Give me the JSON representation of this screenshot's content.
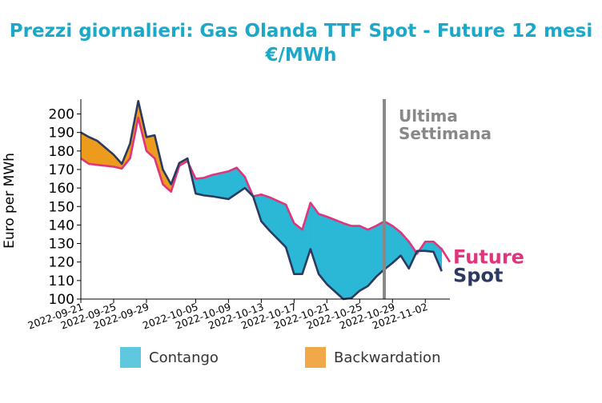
{
  "title": "Prezzi giornalieri: Gas Olanda TTF Spot - Future 12 mesi",
  "subtitle": "€/MWh",
  "colors": {
    "title": "#1ba8c9",
    "future": "#e0347c",
    "spot": "#2b3a5e",
    "contango": "#2bb7d6",
    "backwardation": "#ec9b1c",
    "vline": "#888888"
  },
  "legend": {
    "contango": "Contango",
    "backwardation": "Backwardation"
  },
  "chart_data": {
    "type": "area",
    "ylabel": "Euro per MWh",
    "xlabel": "",
    "ylim": [
      100,
      208
    ],
    "xlim": [
      "2022-09-21",
      "2022-11-05"
    ],
    "yticks": [
      100,
      110,
      120,
      130,
      140,
      150,
      160,
      170,
      180,
      190,
      200
    ],
    "xticks": [
      "2022-09-21",
      "2022-09-25",
      "2022-09-29",
      "2022-10-05",
      "2022-10-09",
      "2022-10-13",
      "2022-10-17",
      "2022-10-21",
      "2022-10-25",
      "2022-10-29",
      "2022-11-02"
    ],
    "annotation": {
      "x": "2022-10-28",
      "text_lines": [
        "Ultima",
        "Settimana"
      ]
    },
    "series": [
      {
        "name": "Future",
        "points": [
          [
            "2022-09-21",
            176
          ],
          [
            "2022-09-22",
            173
          ],
          [
            "2022-09-23",
            172.5
          ],
          [
            "2022-09-25",
            171.5
          ],
          [
            "2022-09-26",
            170.5
          ],
          [
            "2022-09-27",
            176
          ],
          [
            "2022-09-28",
            198
          ],
          [
            "2022-09-29",
            180
          ],
          [
            "2022-09-30",
            176
          ],
          [
            "2022-10-01",
            162
          ],
          [
            "2022-10-02",
            158
          ],
          [
            "2022-10-03",
            172
          ],
          [
            "2022-10-04",
            174.5
          ],
          [
            "2022-10-05",
            165
          ],
          [
            "2022-10-06",
            165.5
          ],
          [
            "2022-10-07",
            167
          ],
          [
            "2022-10-09",
            169
          ],
          [
            "2022-10-10",
            171
          ],
          [
            "2022-10-11",
            166
          ],
          [
            "2022-10-12",
            155.5
          ],
          [
            "2022-10-13",
            156.5
          ],
          [
            "2022-10-14",
            155
          ],
          [
            "2022-10-16",
            151
          ],
          [
            "2022-10-17",
            141
          ],
          [
            "2022-10-18",
            137.5
          ],
          [
            "2022-10-19",
            152
          ],
          [
            "2022-10-20",
            146
          ],
          [
            "2022-10-21",
            144.5
          ],
          [
            "2022-10-23",
            141
          ],
          [
            "2022-10-24",
            139.5
          ],
          [
            "2022-10-25",
            139.5
          ],
          [
            "2022-10-26",
            137.5
          ],
          [
            "2022-10-27",
            139.5
          ],
          [
            "2022-10-28",
            142
          ],
          [
            "2022-10-29",
            139.5
          ],
          [
            "2022-10-30",
            136
          ],
          [
            "2022-10-31",
            131
          ],
          [
            "2022-11-01",
            124.5
          ],
          [
            "2022-11-02",
            131
          ],
          [
            "2022-11-03",
            131
          ],
          [
            "2022-11-04",
            127
          ],
          [
            "2022-11-05",
            120
          ]
        ]
      },
      {
        "name": "Spot",
        "points": [
          [
            "2022-09-21",
            190
          ],
          [
            "2022-09-22",
            187.5
          ],
          [
            "2022-09-23",
            185.5
          ],
          [
            "2022-09-25",
            178
          ],
          [
            "2022-09-26",
            173
          ],
          [
            "2022-09-27",
            184
          ],
          [
            "2022-09-28",
            207
          ],
          [
            "2022-09-29",
            187.5
          ],
          [
            "2022-09-30",
            188.5
          ],
          [
            "2022-10-01",
            170
          ],
          [
            "2022-10-02",
            162
          ],
          [
            "2022-10-03",
            173.5
          ],
          [
            "2022-10-04",
            176
          ],
          [
            "2022-10-05",
            157
          ],
          [
            "2022-10-06",
            156
          ],
          [
            "2022-10-07",
            155.5
          ],
          [
            "2022-10-09",
            154
          ],
          [
            "2022-10-10",
            157
          ],
          [
            "2022-10-11",
            160
          ],
          [
            "2022-10-12",
            155.5
          ],
          [
            "2022-10-13",
            142
          ],
          [
            "2022-10-14",
            137
          ],
          [
            "2022-10-16",
            128
          ],
          [
            "2022-10-17",
            113.5
          ],
          [
            "2022-10-18",
            113.5
          ],
          [
            "2022-10-19",
            127
          ],
          [
            "2022-10-20",
            113.5
          ],
          [
            "2022-10-21",
            108
          ],
          [
            "2022-10-23",
            100
          ],
          [
            "2022-10-24",
            100.5
          ],
          [
            "2022-10-25",
            104.5
          ],
          [
            "2022-10-26",
            107
          ],
          [
            "2022-10-27",
            112
          ],
          [
            "2022-10-28",
            116
          ],
          [
            "2022-10-29",
            119.5
          ],
          [
            "2022-10-30",
            123.5
          ],
          [
            "2022-10-31",
            116.5
          ],
          [
            "2022-11-01",
            126
          ],
          [
            "2022-11-02",
            126
          ],
          [
            "2022-11-03",
            125.5
          ],
          [
            "2022-11-04",
            115
          ]
        ]
      }
    ]
  }
}
